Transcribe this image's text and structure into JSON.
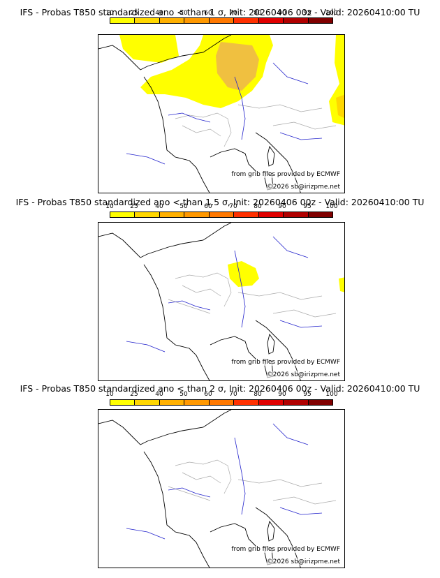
{
  "panels": [
    {
      "title": "IFS - Probas T850  standardized ano < than 1 σ, Init: 20260406 00z - Valid: 20260410:00 TU"
    },
    {
      "title": "IFS - Probas T850  standardized ano < than 1.5 σ, Init: 20260406 00z - Valid: 20260410:00 TU"
    },
    {
      "title": "IFS - Probas T850  standardized ano < than 2 σ, Init: 20260406 00z - Valid: 20260410:00 TU"
    }
  ],
  "scale": {
    "labels": [
      "10",
      "25",
      "40",
      "50",
      "60",
      "70",
      "80",
      "90",
      "95",
      "100"
    ],
    "colors": [
      "#ffff00",
      "#ffd700",
      "#ffb000",
      "#ff9800",
      "#ff7800",
      "#ff3000",
      "#e00000",
      "#b00000",
      "#800000"
    ]
  },
  "credits": {
    "source": "from grib files provided by ECMWF",
    "copyright": "©2026 sb@irizpme.net"
  },
  "colors": {
    "prob_low": "#ffff00",
    "prob_mid": "#ffd700",
    "prob_high": "#f0c040",
    "coast": "#000000",
    "river": "#2222cc",
    "border": "#aaaaaa"
  }
}
